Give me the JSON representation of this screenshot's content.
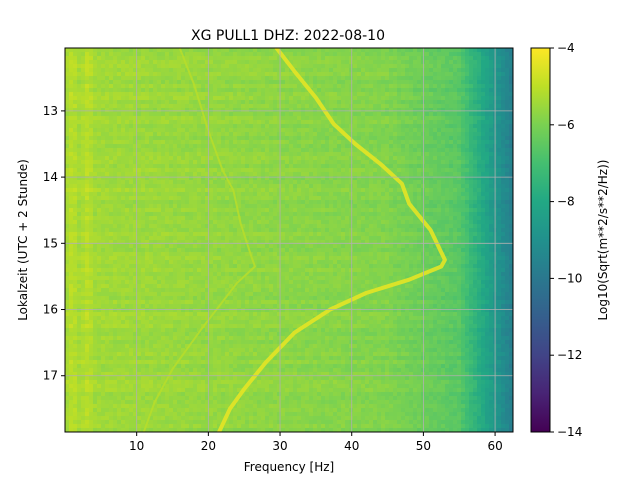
{
  "chart_data": {
    "type": "heatmap",
    "title": "XG PULL1  DHZ: 2022-08-10",
    "xlabel": "Frequency [Hz]",
    "ylabel": "Lokalzeit (UTC + 2 Stunde)",
    "colorbar_label": "Log10(Sqrt(m**2/s**2/Hz))",
    "colormap": "viridis",
    "xlim": [
      0,
      62.5
    ],
    "ylim": [
      12.05,
      17.85
    ],
    "y_inverted": true,
    "x_ticks": [
      10,
      20,
      30,
      40,
      50,
      60
    ],
    "y_ticks": [
      13,
      14,
      15,
      16,
      17
    ],
    "clim": [
      -14,
      -4
    ],
    "colorbar_ticks": [
      -4,
      -6,
      -8,
      -10,
      -12,
      -14
    ],
    "grid": true,
    "tracks": [
      {
        "label": "bright sweep",
        "level": -4.4,
        "points": [
          [
            29.5,
            12.05
          ],
          [
            32,
            12.4
          ],
          [
            35,
            12.8
          ],
          [
            37.5,
            13.2
          ],
          [
            40.5,
            13.5
          ],
          [
            44,
            13.8
          ],
          [
            47,
            14.1
          ],
          [
            48,
            14.4
          ],
          [
            51,
            14.8
          ],
          [
            53,
            15.25
          ],
          [
            52.5,
            15.35
          ],
          [
            48,
            15.55
          ],
          [
            42,
            15.75
          ],
          [
            37,
            16.0
          ],
          [
            32,
            16.35
          ],
          [
            28,
            16.8
          ],
          [
            25,
            17.2
          ],
          [
            23,
            17.5
          ],
          [
            21.5,
            17.85
          ]
        ]
      },
      {
        "label": "faint sweep",
        "level": -5.1,
        "points": [
          [
            16,
            12.05
          ],
          [
            18,
            12.6
          ],
          [
            20,
            13.3
          ],
          [
            22,
            13.9
          ],
          [
            23.5,
            14.2
          ],
          [
            24.5,
            14.7
          ],
          [
            26,
            15.2
          ],
          [
            26.5,
            15.35
          ],
          [
            24,
            15.6
          ],
          [
            19,
            16.3
          ],
          [
            15,
            16.9
          ],
          [
            12.5,
            17.4
          ],
          [
            11,
            17.85
          ]
        ]
      }
    ]
  }
}
